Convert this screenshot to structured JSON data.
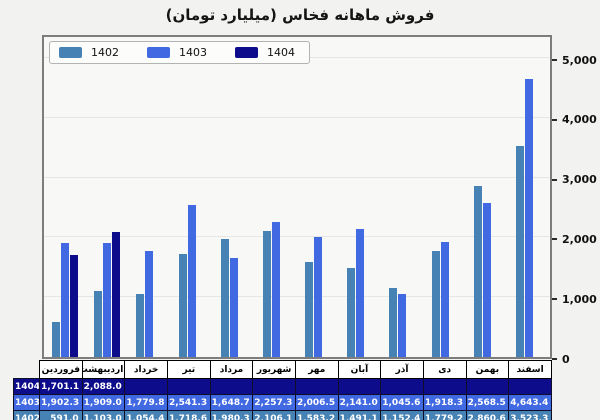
{
  "title": "فروش ماهانه فخاس (میلیارد تومان)",
  "chart_data": {
    "type": "bar",
    "title": "فروش ماهانه فخاس (میلیارد تومان)",
    "categories": [
      "فروردین",
      "اردیبهشت",
      "خرداد",
      "تیر",
      "مرداد",
      "شهریور",
      "مهر",
      "آبان",
      "آذر",
      "دی",
      "بهمن",
      "اسفند"
    ],
    "series": [
      {
        "name": "1402",
        "color": "#4682B4",
        "values": [
          591.0,
          1103.0,
          1054.4,
          1718.6,
          1980.3,
          2106.1,
          1583.2,
          1491.1,
          1152.4,
          1779.2,
          2860.6,
          3523.3
        ]
      },
      {
        "name": "1403",
        "color": "#4169E1",
        "values": [
          1902.3,
          1909.0,
          1779.8,
          2541.3,
          1648.7,
          2257.3,
          2006.5,
          2141.0,
          1045.6,
          1918.3,
          2568.5,
          4643.4
        ]
      },
      {
        "name": "1404",
        "color": "#0D0D8C",
        "values": [
          1701.1,
          2088.0,
          null,
          null,
          null,
          null,
          null,
          null,
          null,
          null,
          null,
          null
        ]
      }
    ],
    "ylim": [
      0,
      5000
    ],
    "yticks": [
      {
        "value": 0,
        "label": "0"
      },
      {
        "value": 1000,
        "label": "1,000"
      },
      {
        "value": 2000,
        "label": "2,000"
      },
      {
        "value": 3000,
        "label": "3,000"
      },
      {
        "value": 4000,
        "label": "4,000"
      },
      {
        "value": 5000,
        "label": "5,000"
      }
    ],
    "grid": true,
    "y_axis_side": "right",
    "legend_position": "top-left",
    "legend_order": [
      "1402",
      "1403",
      "1404"
    ]
  },
  "table": {
    "row_order": [
      "1404",
      "1403",
      "1402"
    ]
  }
}
